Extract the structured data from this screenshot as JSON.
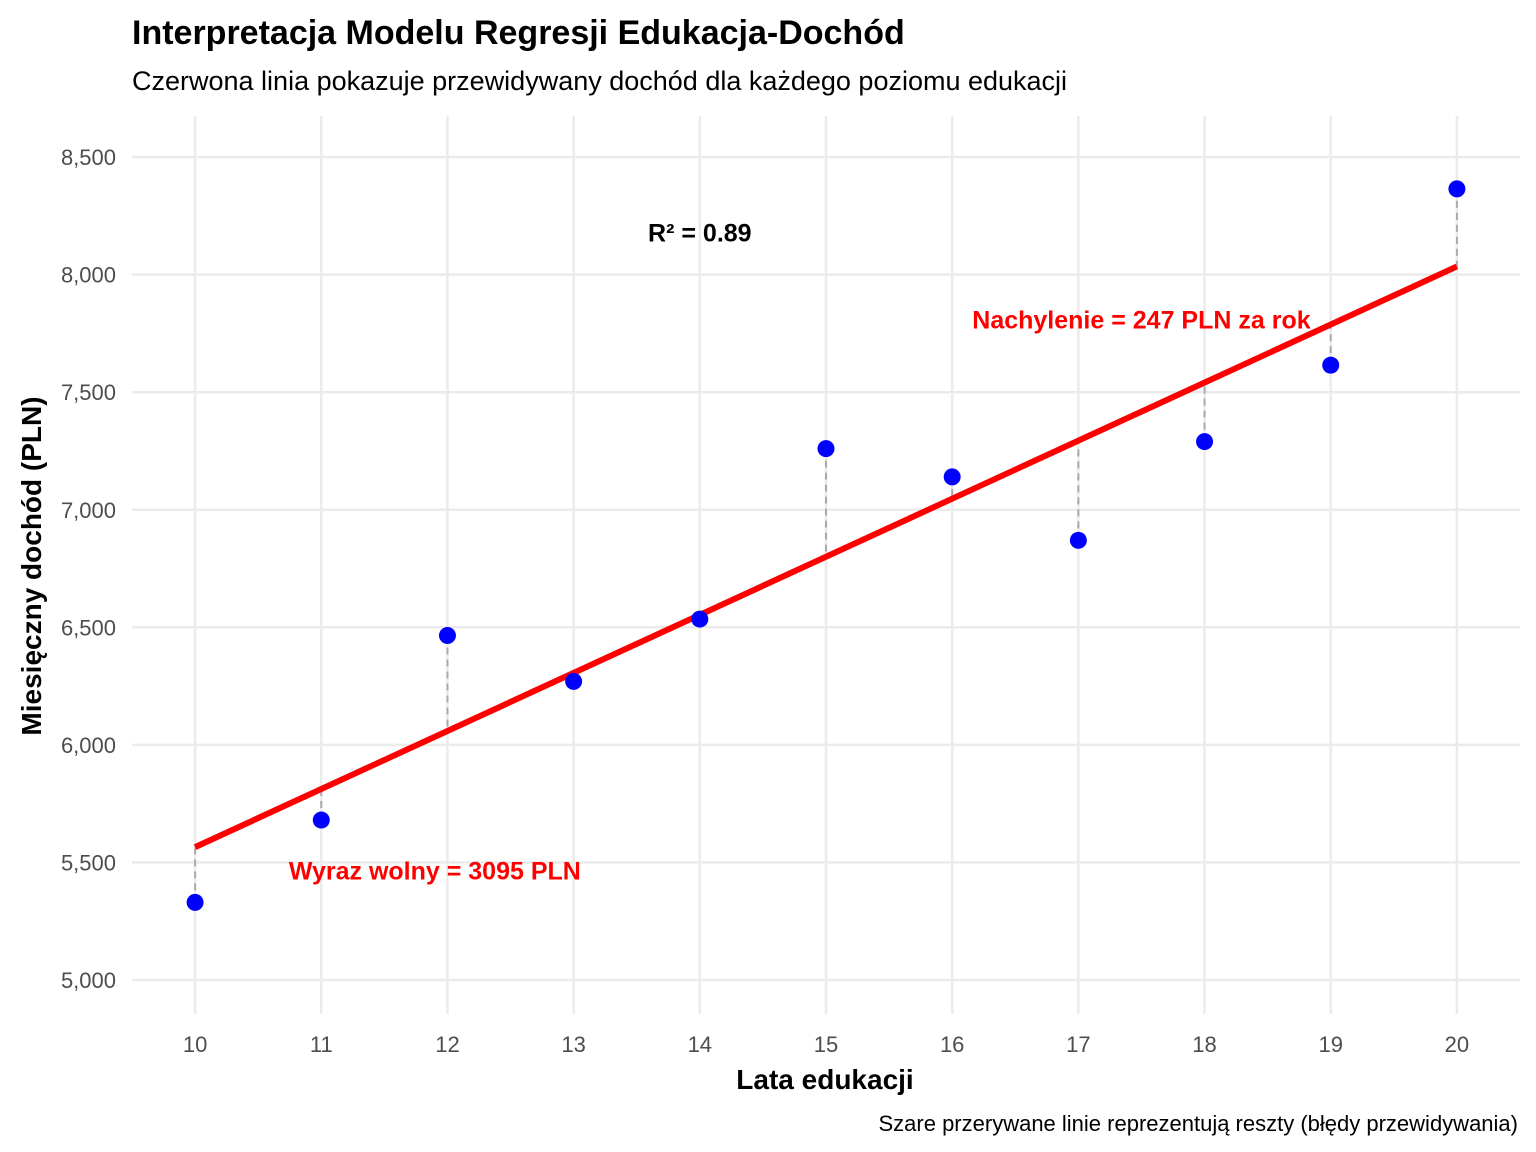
{
  "chart_data": {
    "type": "scatter",
    "title": "Interpretacja Modelu Regresji Edukacja-Dochód",
    "subtitle": "Czerwona linia pokazuje przewidywany dochód dla każdego poziomu edukacji",
    "xlabel": "Lata edukacji",
    "ylabel": "Miesięczny dochód (PLN)",
    "caption": "Szare przerywane linie reprezentują reszty (błędy przewidywania)",
    "x_ticks": [
      10,
      11,
      12,
      13,
      14,
      15,
      16,
      17,
      18,
      19,
      20
    ],
    "y_ticks": [
      5000,
      5500,
      6000,
      6500,
      7000,
      7500,
      8000,
      8500
    ],
    "y_tick_labels": [
      "5,000",
      "5,500",
      "6,000",
      "6,500",
      "7,000",
      "7,500",
      "8,000",
      "8,500"
    ],
    "xlim": [
      9.5,
      20.5
    ],
    "ylim": [
      4855,
      8675
    ],
    "grid": true,
    "points": {
      "x": [
        10,
        11,
        12,
        13,
        14,
        15,
        16,
        17,
        18,
        19,
        20
      ],
      "y": [
        5330,
        5680,
        6465,
        6270,
        6535,
        7260,
        7140,
        6870,
        7290,
        7615,
        8365
      ],
      "color": "#0000ff"
    },
    "regression": {
      "intercept": 3095,
      "slope": 247,
      "x_range": [
        10,
        20
      ],
      "color": "#ff0000"
    },
    "residual_color": "#aaaaaa",
    "annotations": [
      {
        "text": "R² = 0.89",
        "x": 14,
        "y": 8180,
        "style": "black"
      },
      {
        "text": "Nachylenie = 247 PLN za rok",
        "x": 17.5,
        "y": 7810,
        "style": "red"
      },
      {
        "text": "Wyraz wolny = 3095 PLN",
        "x": 11.9,
        "y": 5465,
        "style": "red"
      }
    ]
  }
}
